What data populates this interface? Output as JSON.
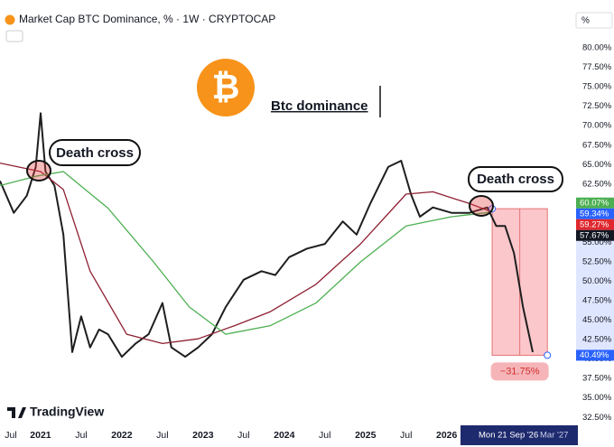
{
  "chart_data": {
    "type": "line",
    "title": "Market Cap BTC Dominance, % · 1W · CRYPTOCAP",
    "axis_unit": "%",
    "watermark": "TradingView",
    "annotations": [
      "Btc dominance",
      "Death cross",
      "Death cross"
    ],
    "crosshair_label": "Mon 21 Sep '26",
    "axis_end_label": "Mar '27",
    "xlim": [
      2020.5,
      2027.56
    ],
    "xticks": [
      {
        "value": 2020.5,
        "label": "Jul"
      },
      2021,
      {
        "value": 2021.5,
        "label": "Jul"
      },
      2022,
      {
        "value": 2022.5,
        "label": "Jul"
      },
      2023,
      {
        "value": 2023.5,
        "label": "Jul"
      },
      2024,
      {
        "value": 2024.5,
        "label": "Jul"
      },
      2025,
      {
        "value": 2025.5,
        "label": "Jul"
      },
      2026
    ],
    "ylim": [
      31.6,
      85
    ],
    "yticks": [
      {
        "value": 32.5,
        "label": "32.50%"
      },
      {
        "value": 35,
        "label": "35.00%"
      },
      {
        "value": 37.5,
        "label": "37.50%"
      },
      {
        "value": 40,
        "label": "40.00%"
      },
      {
        "value": 42.5,
        "label": "42.50%"
      },
      {
        "value": 45,
        "label": "45.00%"
      },
      {
        "value": 47.5,
        "label": "47.50%"
      },
      {
        "value": 50,
        "label": "50.00%"
      },
      {
        "value": 52.5,
        "label": "52.50%"
      },
      {
        "value": 55,
        "label": "55.00%"
      },
      {
        "value": 57.5,
        "label": "57.50%"
      },
      {
        "value": 60,
        "label": "60.00%"
      },
      {
        "value": 62.5,
        "label": "62.50%"
      },
      {
        "value": 65,
        "label": "65.00%"
      },
      {
        "value": 67.5,
        "label": "67.50%"
      },
      {
        "value": 70,
        "label": "70.00%"
      },
      {
        "value": 72.5,
        "label": "72.50%"
      },
      {
        "value": 75,
        "label": "75.00%"
      },
      {
        "value": 77.5,
        "label": "77.50%"
      },
      {
        "value": 80,
        "label": "80.00%"
      }
    ],
    "grid": false,
    "series": [
      {
        "color": "#1e1e1e",
        "x": [
          2020.5,
          2020.67,
          2020.83,
          2020.94,
          2021.0,
          2021.06,
          2021.17,
          2021.28,
          2021.39,
          2021.5,
          2021.61,
          2021.72,
          2021.83,
          2022.0,
          2022.17,
          2022.33,
          2022.5,
          2022.61,
          2022.78,
          2022.94,
          2023.11,
          2023.28,
          2023.5,
          2023.72,
          2023.89,
          2024.06,
          2024.28,
          2024.5,
          2024.72,
          2024.89,
          2025.06,
          2025.28,
          2025.44,
          2025.56,
          2025.67,
          2025.83,
          2026.06,
          2026.28,
          2026.5,
          2026.61,
          2026.72,
          2026.83,
          2026.94,
          2027.06
        ],
        "values": [
          62.9,
          58.8,
          61.0,
          64.7,
          71.6,
          64.1,
          62.3,
          56.0,
          40.9,
          45.5,
          41.5,
          43.8,
          43.2,
          40.3,
          42.0,
          43.2,
          47.2,
          41.5,
          40.3,
          41.5,
          43.2,
          46.7,
          50.2,
          51.3,
          50.8,
          53.1,
          54.2,
          54.8,
          57.7,
          56.0,
          60.0,
          64.7,
          65.5,
          61.2,
          58.3,
          59.5,
          58.8,
          58.8,
          59.5,
          57.1,
          57.1,
          53.6,
          46.7,
          40.9
        ]
      },
      {
        "color": "#8e1f32",
        "x": [
          2020.5,
          2021.0,
          2021.28,
          2021.61,
          2022.06,
          2022.5,
          2022.94,
          2023.39,
          2023.83,
          2024.39,
          2024.94,
          2025.5,
          2025.83,
          2026.28,
          2026.56
        ],
        "values": [
          65.2,
          64.1,
          61.8,
          51.3,
          43.2,
          42.0,
          42.6,
          44.3,
          46.1,
          49.6,
          54.8,
          61.2,
          61.5,
          60.0,
          58.9
        ]
      },
      {
        "color": "#4caf50",
        "x": [
          2020.5,
          2020.94,
          2021.28,
          2021.83,
          2022.39,
          2022.83,
          2023.28,
          2023.83,
          2024.39,
          2024.94,
          2025.5,
          2026.06,
          2026.56
        ],
        "values": [
          62.3,
          63.5,
          64.1,
          59.4,
          52.5,
          46.7,
          43.2,
          44.3,
          47.2,
          52.5,
          57.1,
          58.3,
          58.9
        ]
      }
    ],
    "price_tags": [
      {
        "value": 60.07,
        "label": "60.07%",
        "color": "#4caf50"
      },
      {
        "value": 59.34,
        "label": "59.34%",
        "color": "#2962ff"
      },
      {
        "value": 59.27,
        "label": "59.27%",
        "color": "#e0282e"
      },
      {
        "value": 57.67,
        "label": "57.67%",
        "color": "#131722"
      },
      {
        "value": 40.49,
        "label": "40.49%",
        "color": "#2962ff"
      }
    ],
    "measure": {
      "start_x": 2026.56,
      "end_x": 2027.24,
      "start": 59.33,
      "end": 40.49,
      "label": "−31.75%"
    }
  }
}
